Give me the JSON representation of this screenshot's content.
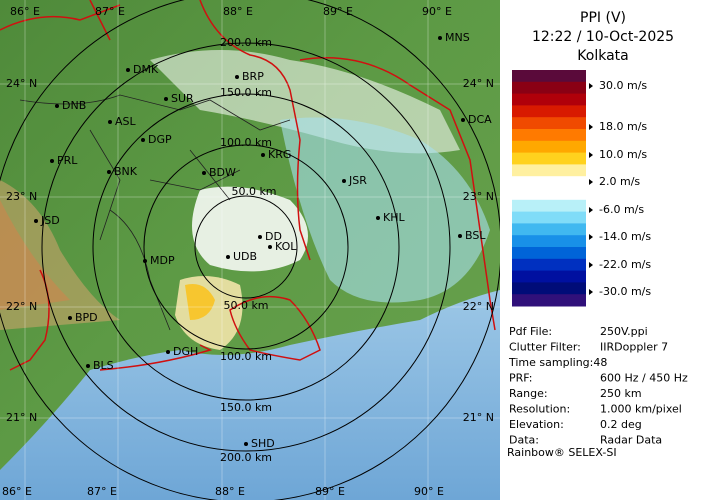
{
  "panel": {
    "title": "PPI (V)",
    "time": "12:22 / 10-Oct-2025",
    "site": "Kolkata",
    "scale_labels": [
      "30.0 m/s",
      "18.0 m/s",
      "10.0 m/s",
      "2.0 m/s",
      "-6.0 m/s",
      "-14.0 m/s",
      "-22.0 m/s",
      "-30.0 m/s"
    ],
    "info": [
      [
        "Pdf File:",
        "250V.ppi"
      ],
      [
        "Clutter Filter:",
        "IIRDoppler 7"
      ],
      [
        "Time sampling:48"
      ],
      [
        "PRF:",
        "600 Hz / 450 Hz"
      ],
      [
        "Range:",
        "250 km"
      ],
      [
        "Resolution:",
        "1.000 km/pixel"
      ],
      [
        "Elevation:",
        "0.2 deg"
      ],
      [
        "Data:",
        "Radar Data"
      ]
    ],
    "footer": "Rainbow® SELEX-SI"
  },
  "map": {
    "lon_top": [
      "86° E",
      "87° E",
      "88° E",
      "89° E",
      "90° E"
    ],
    "lon_bottom": [
      "86° E",
      "87° E",
      "88° E",
      "89° E",
      "90° E"
    ],
    "lat_left": [
      "24° N",
      "23° N",
      "22° N",
      "21° N"
    ],
    "lat_right": [
      "24° N",
      "23° N",
      "22° N",
      "21° N"
    ],
    "range_labels": [
      "200.0 km",
      "150.0 km",
      "100.0 km",
      "50.0 km",
      "50.0 km",
      "100.0 km",
      "150.0 km",
      "200.0 km"
    ],
    "cities": [
      "MNS",
      "DMK",
      "BRP",
      "DNB",
      "SUR",
      "ASL",
      "DGP",
      "DCA",
      "PRL",
      "BNK",
      "BDW",
      "KRG",
      "JSR",
      "JSD",
      "KHL",
      "DD",
      "KOL",
      "BSL",
      "MDP",
      "UDB",
      "BPD",
      "DGH",
      "BLS",
      "SHD"
    ]
  }
}
